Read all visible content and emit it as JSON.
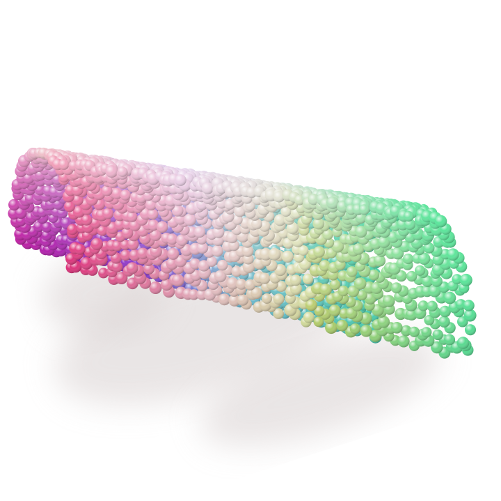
{
  "image": {
    "subject": "sphere-point-cloud-swiss-roll",
    "background_color": "#ffffff",
    "shadow_color": "#d8d0d0",
    "colors": {
      "magenta": "#e21ec0",
      "hot_pink": "#ee2a7e",
      "violet": "#9a38f0",
      "periwinkle": "#a7a9f0",
      "sky_blue": "#7fd2f2",
      "aqua": "#52e9c8",
      "mint_green": "#58e59a",
      "pale_lavender": "#e8d6f0",
      "white_gray": "#e5e5e3",
      "pale_pink": "#f2c4cc",
      "pale_yellow_green": "#dfeaa2",
      "yellow_green": "#c4d86c"
    }
  }
}
